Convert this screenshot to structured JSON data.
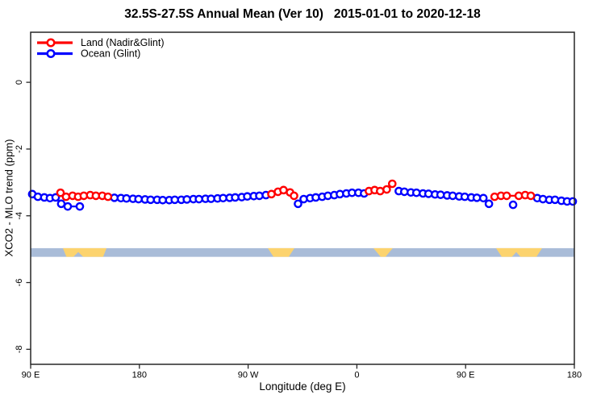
{
  "chart_data": {
    "type": "line",
    "title": "32.5S-27.5S Annual Mean (Ver 10)   2015-01-01 to 2020-12-18",
    "xlabel": "Longitude (deg E)",
    "ylabel": "XCO2 - MLO trend (ppm)",
    "legend_position": "top-left",
    "grid": false,
    "x_axis": {
      "range_deg": [
        90,
        540
      ],
      "ticks": [
        {
          "lon": 90,
          "label": "90 E"
        },
        {
          "lon": 180,
          "label": "180"
        },
        {
          "lon": 270,
          "label": "90 W"
        },
        {
          "lon": 360,
          "label": "0"
        },
        {
          "lon": 450,
          "label": "90 E"
        },
        {
          "lon": 540,
          "label": "180"
        }
      ]
    },
    "y_axis": {
      "range_ppm": [
        -8.45,
        1.5
      ],
      "ticks": [
        {
          "v": 0,
          "label": "0"
        },
        {
          "v": -2,
          "label": "-2"
        },
        {
          "v": -4,
          "label": "-4"
        },
        {
          "v": -6,
          "label": "-6"
        },
        {
          "v": -8,
          "label": "-8"
        }
      ]
    },
    "band": {
      "description": "surface-type strip: ocean with land patches",
      "y_top_ppm": -4.97,
      "y_bottom_ppm": -5.23,
      "ocean_color": "#a9bcd8",
      "land_color": "#fcd36e",
      "land_patches": [
        [
          [
            116.7,
            0
          ],
          [
            152.8,
            0
          ],
          [
            150.0,
            1
          ],
          [
            133.5,
            1
          ],
          [
            129.4,
            0.45
          ],
          [
            125.4,
            1
          ],
          [
            119.6,
            1
          ]
        ],
        [
          [
            286.3,
            0
          ],
          [
            308.3,
            0
          ],
          [
            303.6,
            1
          ],
          [
            291.0,
            1
          ]
        ],
        [
          [
            373.7,
            0
          ],
          [
            389.7,
            0
          ],
          [
            383.7,
            1
          ],
          [
            379.7,
            1
          ]
        ],
        [
          [
            475.2,
            0
          ],
          [
            513.3,
            0
          ],
          [
            508.6,
            1
          ],
          [
            495.5,
            1
          ],
          [
            491.9,
            0.45
          ],
          [
            488.3,
            1
          ],
          [
            479.9,
            1
          ]
        ]
      ]
    },
    "series": [
      {
        "name": "Land (Nadir&Glint)",
        "color": "#ff0000",
        "points": [
          [
            114.7,
            -3.31
          ],
          [
            119.3,
            -3.43
          ],
          [
            124.7,
            -3.4
          ],
          [
            129.3,
            -3.43
          ],
          [
            134.0,
            -3.4
          ],
          [
            139.3,
            -3.38
          ],
          [
            144.0,
            -3.4
          ],
          [
            149.3,
            -3.4
          ],
          [
            154.0,
            -3.43
          ],
          [
            289.3,
            -3.35
          ],
          [
            294.7,
            -3.28
          ],
          [
            299.3,
            -3.23
          ],
          [
            304.7,
            -3.3
          ],
          [
            308.0,
            -3.4
          ],
          [
            370.0,
            -3.26
          ],
          [
            374.7,
            -3.23
          ],
          [
            379.3,
            -3.26
          ],
          [
            384.7,
            -3.21
          ],
          [
            389.3,
            -3.04
          ],
          [
            474.0,
            -3.43
          ],
          [
            479.3,
            -3.4
          ],
          [
            484.0,
            -3.4
          ],
          [
            494.0,
            -3.4
          ],
          [
            499.3,
            -3.38
          ],
          [
            504.0,
            -3.4
          ]
        ]
      },
      {
        "name": "Ocean (Glint)",
        "color": "#0000ff",
        "points": [
          [
            91.3,
            -3.35
          ],
          [
            96.0,
            -3.43
          ],
          [
            101.3,
            -3.45
          ],
          [
            106.0,
            -3.47
          ],
          [
            110.7,
            -3.45
          ],
          [
            115.3,
            -3.64
          ],
          [
            120.7,
            -3.72
          ],
          [
            130.7,
            -3.72
          ],
          [
            159.3,
            -3.46
          ],
          [
            164.7,
            -3.47
          ],
          [
            169.3,
            -3.48
          ],
          [
            174.7,
            -3.49
          ],
          [
            179.3,
            -3.5
          ],
          [
            184.7,
            -3.51
          ],
          [
            189.3,
            -3.52
          ],
          [
            194.7,
            -3.52
          ],
          [
            199.3,
            -3.53
          ],
          [
            204.7,
            -3.53
          ],
          [
            209.3,
            -3.52
          ],
          [
            214.7,
            -3.52
          ],
          [
            219.3,
            -3.51
          ],
          [
            224.7,
            -3.5
          ],
          [
            229.3,
            -3.5
          ],
          [
            234.7,
            -3.49
          ],
          [
            239.3,
            -3.49
          ],
          [
            244.7,
            -3.48
          ],
          [
            249.3,
            -3.47
          ],
          [
            254.7,
            -3.46
          ],
          [
            259.3,
            -3.45
          ],
          [
            264.7,
            -3.44
          ],
          [
            269.3,
            -3.42
          ],
          [
            274.7,
            -3.41
          ],
          [
            279.3,
            -3.4
          ],
          [
            284.7,
            -3.38
          ],
          [
            311.3,
            -3.64
          ],
          [
            316.0,
            -3.5
          ],
          [
            321.3,
            -3.47
          ],
          [
            326.0,
            -3.45
          ],
          [
            331.3,
            -3.43
          ],
          [
            336.0,
            -3.4
          ],
          [
            341.3,
            -3.38
          ],
          [
            346.0,
            -3.35
          ],
          [
            351.3,
            -3.33
          ],
          [
            356.0,
            -3.31
          ],
          [
            361.3,
            -3.31
          ],
          [
            366.0,
            -3.33
          ],
          [
            394.7,
            -3.26
          ],
          [
            399.3,
            -3.28
          ],
          [
            404.7,
            -3.3
          ],
          [
            409.3,
            -3.31
          ],
          [
            414.7,
            -3.33
          ],
          [
            419.3,
            -3.34
          ],
          [
            424.7,
            -3.36
          ],
          [
            429.3,
            -3.37
          ],
          [
            434.7,
            -3.39
          ],
          [
            439.3,
            -3.4
          ],
          [
            444.7,
            -3.42
          ],
          [
            449.3,
            -3.43
          ],
          [
            454.7,
            -3.45
          ],
          [
            459.3,
            -3.46
          ],
          [
            464.7,
            -3.47
          ],
          [
            469.3,
            -3.64
          ],
          [
            489.3,
            -3.67
          ],
          [
            509.3,
            -3.47
          ],
          [
            514.0,
            -3.5
          ],
          [
            519.3,
            -3.52
          ],
          [
            524.0,
            -3.52
          ],
          [
            529.3,
            -3.55
          ],
          [
            534.0,
            -3.57
          ],
          [
            538.7,
            -3.57
          ]
        ]
      }
    ]
  }
}
